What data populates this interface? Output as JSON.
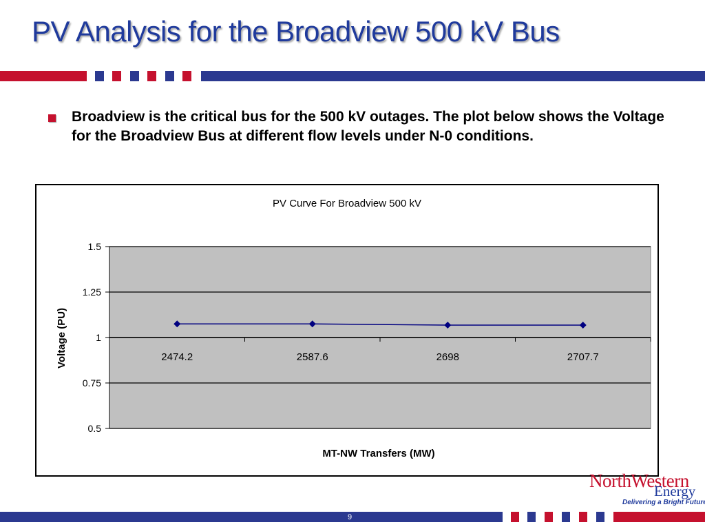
{
  "slide": {
    "title": "PV Analysis for the Broadview 500 kV Bus",
    "bullet": "Broadview is the critical bus for the 500 kV outages. The plot below shows the Voltage for the Broadview Bus at different flow levels under N-0 conditions.",
    "page_number": "9"
  },
  "logo": {
    "north_text": "NorthWestern",
    "energy_text": "Energy",
    "tagline": "Delivering a Bright Future"
  },
  "colors": {
    "title": "#1f3a9c",
    "accent_red": "#c5112e",
    "navy": "#2b3990",
    "plot_bg": "#c0c0c0",
    "series": "#000080"
  },
  "chart_data": {
    "type": "line",
    "title": "PV Curve For Broadview  500 kV",
    "xlabel": "MT-NW Transfers (MW)",
    "ylabel": "Voltage (PU)",
    "categories": [
      "2474.2",
      "2587.6",
      "2698",
      "2707.7"
    ],
    "series": [
      {
        "values": [
          1.075,
          1.075,
          1.068,
          1.068
        ]
      }
    ],
    "ylim": [
      0.5,
      1.5
    ],
    "yticks": [
      "1.5",
      "1.25",
      "1",
      "0.75",
      "0.5"
    ],
    "ytick_values": [
      1.5,
      1.25,
      1,
      0.75,
      0.5
    ],
    "x_axis_crosses_at": 1,
    "grid": true,
    "legend": "none"
  }
}
